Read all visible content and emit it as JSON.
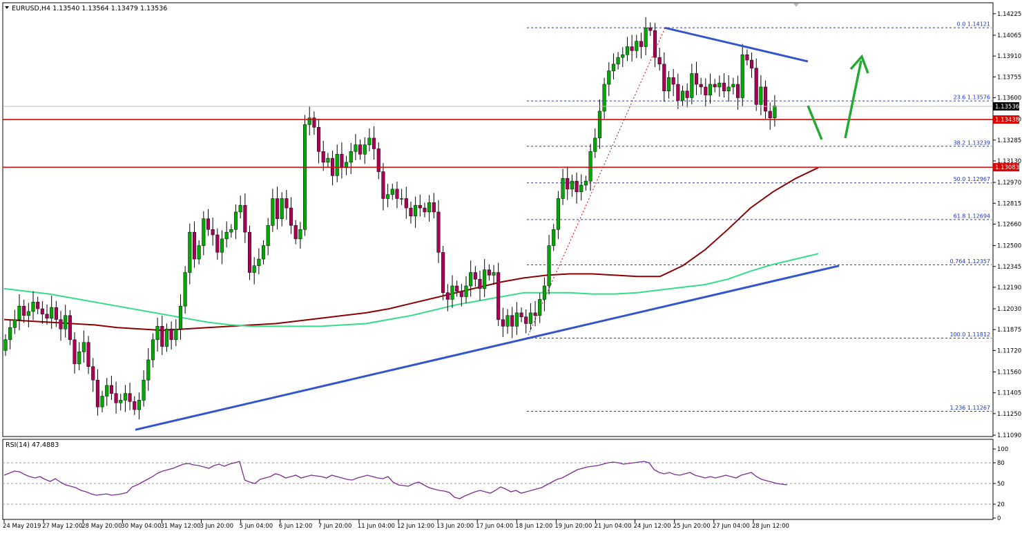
{
  "window": {
    "header_text": "EURUSD,H4  1.13540 1.13564 1.13479 1.13536",
    "rsi_label": "RSI(14) 47.4883"
  },
  "colors": {
    "bull": "#00aa00",
    "bear": "#aa0055",
    "wick": "#000000",
    "ma_dark": "#8b0000",
    "ma_green": "#33dd88",
    "trend": "#3355cc",
    "support_line": "#dd0000",
    "fib": "#2233cc",
    "arrow": "#22aa33",
    "rsi": "#7b2d8e",
    "price_box": "#000000",
    "red_box": "#dd0000"
  },
  "chart_data": [
    {
      "type": "candlestick",
      "title": "",
      "symbol": "EURUSD",
      "timeframe": "H4",
      "header": {
        "open": 1.1354,
        "high": 1.13564,
        "low": 1.13479,
        "close": 1.13536
      },
      "ylim": [
        1.1109,
        1.1425
      ],
      "y_ticks": [
        "1.14225",
        "1.14065",
        "1.13910",
        "1.13755",
        "1.13600",
        "1.13440",
        "1.13285",
        "1.13130",
        "1.12970",
        "1.12815",
        "1.12660",
        "1.12500",
        "1.12345",
        "1.12190",
        "1.12030",
        "1.11875",
        "1.11720",
        "1.11560",
        "1.11405",
        "1.11250",
        "1.11090"
      ],
      "x_ticks": [
        "24 May 2019",
        "27 May 12:00",
        "28 May 20:00",
        "30 May 04:00",
        "31 May 12:00",
        "3 Jun 20:00",
        "5 Jun 04:00",
        "6 Jun 12:00",
        "7 Jun 20:00",
        "11 Jun 04:00",
        "12 Jun 12:00",
        "13 Jun 20:00",
        "17 Jun 04:00",
        "18 Jun 12:00",
        "19 Jun 20:00",
        "21 Jun 04:00",
        "24 Jun 12:00",
        "25 Jun 20:00",
        "27 Jun 04:00",
        "28 Jun 12:00"
      ],
      "price_markers": [
        {
          "label": "1.13536",
          "value": 1.13536,
          "style": "black"
        },
        {
          "label": "1.13438",
          "value": 1.13438,
          "style": "red"
        },
        {
          "label": "1.13083",
          "value": 1.13083,
          "style": "red"
        }
      ],
      "support_resistance": [
        1.13438,
        1.13083
      ],
      "fibonacci": [
        {
          "label": "0.0  1.14121",
          "value": 1.14121
        },
        {
          "label": "23.6  1.13576",
          "value": 1.13576
        },
        {
          "label": "38.2  1.13239",
          "value": 1.13239
        },
        {
          "label": "50.0  1.12967",
          "value": 1.12967
        },
        {
          "label": "61.8  1.12694",
          "value": 1.12694
        },
        {
          "label": "0.764  1.12357",
          "value": 1.12357
        },
        {
          "label": "100.0  1.11812",
          "value": 1.11812
        },
        {
          "label": "1.236  1.11267",
          "value": 1.11267
        }
      ],
      "closes": [
        1.118,
        1.1189,
        1.1195,
        1.1205,
        1.1198,
        1.1201,
        1.1208,
        1.1203,
        1.1199,
        1.1196,
        1.1204,
        1.1195,
        1.1188,
        1.1198,
        1.118,
        1.1162,
        1.1171,
        1.1178,
        1.116,
        1.115,
        1.113,
        1.1138,
        1.1146,
        1.114,
        1.1133,
        1.1135,
        1.114,
        1.1134,
        1.1128,
        1.1135,
        1.115,
        1.1165,
        1.118,
        1.119,
        1.1175,
        1.1188,
        1.118,
        1.1188,
        1.1205,
        1.123,
        1.126,
        1.124,
        1.125,
        1.127,
        1.1262,
        1.1258,
        1.1245,
        1.1255,
        1.126,
        1.1262,
        1.1275,
        1.128,
        1.126,
        1.123,
        1.1235,
        1.124,
        1.125,
        1.1265,
        1.1285,
        1.127,
        1.1285,
        1.1278,
        1.1265,
        1.1255,
        1.1262,
        1.134,
        1.1345,
        1.1338,
        1.132,
        1.1312,
        1.1315,
        1.1302,
        1.1318,
        1.1308,
        1.1312,
        1.132,
        1.1325,
        1.1318,
        1.1325,
        1.133,
        1.1322,
        1.1305,
        1.1285,
        1.1288,
        1.1292,
        1.1285,
        1.1285,
        1.1278,
        1.1272,
        1.128,
        1.1278,
        1.1275,
        1.1282,
        1.1275,
        1.1245,
        1.1215,
        1.121,
        1.122,
        1.1216,
        1.1212,
        1.122,
        1.123,
        1.1225,
        1.1218,
        1.1232,
        1.1228,
        1.123,
        1.1195,
        1.119,
        1.1198,
        1.119,
        1.12,
        1.1197,
        1.1192,
        1.12,
        1.1198,
        1.121,
        1.122,
        1.125,
        1.1262,
        1.1285,
        1.13,
        1.1292,
        1.1298,
        1.129,
        1.1295,
        1.1298,
        1.132,
        1.133,
        1.135,
        1.137,
        1.138,
        1.1385,
        1.139,
        1.1392,
        1.1398,
        1.1395,
        1.1402,
        1.1398,
        1.1412,
        1.141,
        1.139,
        1.1385,
        1.1365,
        1.1375,
        1.137,
        1.1358,
        1.1365,
        1.136,
        1.1378,
        1.137,
        1.1368,
        1.1362,
        1.137,
        1.1368,
        1.1371,
        1.1365,
        1.1368,
        1.137,
        1.136,
        1.1392,
        1.1388,
        1.1382,
        1.1355,
        1.1368,
        1.135,
        1.1345,
        1.1354
      ],
      "series": [
        {
          "name": "",
          "color_key": "ma_dark",
          "values": [
            1.1195,
            1.1194,
            1.1193,
            1.1192,
            1.1191,
            1.1189,
            1.1188,
            1.1187,
            1.1188,
            1.1189,
            1.119,
            1.1191,
            1.1192,
            1.1194,
            1.1196,
            1.1198,
            1.12,
            1.1203,
            1.1207,
            1.1211,
            1.1215,
            1.1219,
            1.1223,
            1.1226,
            1.1228,
            1.1229,
            1.1229,
            1.1228,
            1.1227,
            1.1227,
            1.1235,
            1.1247,
            1.1262,
            1.1278,
            1.129,
            1.13,
            1.1308
          ]
        },
        {
          "name": "",
          "color_key": "ma_green",
          "values": [
            1.1218,
            1.1216,
            1.1214,
            1.1211,
            1.1208,
            1.1205,
            1.1202,
            1.1199,
            1.1196,
            1.1193,
            1.1191,
            1.119,
            1.119,
            1.119,
            1.119,
            1.1191,
            1.1192,
            1.1195,
            1.1198,
            1.1202,
            1.1206,
            1.1209,
            1.1212,
            1.1215,
            1.1215,
            1.1215,
            1.1214,
            1.1214,
            1.1215,
            1.1217,
            1.1219,
            1.1221,
            1.1225,
            1.1231,
            1.1236,
            1.124,
            1.1244
          ]
        }
      ],
      "grid": false,
      "annotations": {
        "trend_up": [
          [
            1.1113,
            1.1235
          ]
        ],
        "trend_down": [
          [
            1.1412,
            1.1387
          ]
        ],
        "fib_swing": [
          [
            1.1181,
            1.1412
          ]
        ]
      }
    },
    {
      "type": "line",
      "title": "",
      "indicator": "RSI(14)",
      "value": 47.4883,
      "ylim": [
        0,
        100
      ],
      "y_ticks": [
        "100",
        "80",
        "50",
        "20",
        "0"
      ],
      "levels": [
        80,
        50,
        20
      ],
      "values": [
        62,
        65,
        68,
        67,
        63,
        60,
        58,
        60,
        56,
        53,
        57,
        52,
        48,
        46,
        44,
        40,
        38,
        35,
        33,
        34,
        35,
        33,
        34,
        35,
        37,
        45,
        48,
        52,
        56,
        60,
        65,
        68,
        70,
        72,
        75,
        78,
        79,
        77,
        76,
        74,
        72,
        76,
        78,
        75,
        78,
        80,
        82,
        55,
        52,
        50,
        56,
        58,
        60,
        64,
        62,
        58,
        60,
        62,
        58,
        60,
        62,
        61,
        60,
        58,
        62,
        60,
        58,
        56,
        55,
        58,
        60,
        62,
        60,
        58,
        57,
        60,
        52,
        48,
        47,
        46,
        50,
        52,
        48,
        44,
        42,
        40,
        39,
        37,
        30,
        28,
        32,
        35,
        38,
        40,
        38,
        36,
        40,
        45,
        42,
        38,
        40,
        36,
        38,
        40,
        42,
        44,
        48,
        52,
        56,
        58,
        62,
        66,
        70,
        72,
        74,
        75,
        76,
        78,
        80,
        81,
        80,
        78,
        79,
        80,
        81,
        82,
        80,
        70,
        66,
        64,
        66,
        63,
        62,
        64,
        66,
        62,
        60,
        58,
        60,
        58,
        60,
        62,
        60,
        58,
        62,
        64,
        66,
        60,
        56,
        54,
        52,
        50,
        49,
        48
      ]
    }
  ]
}
